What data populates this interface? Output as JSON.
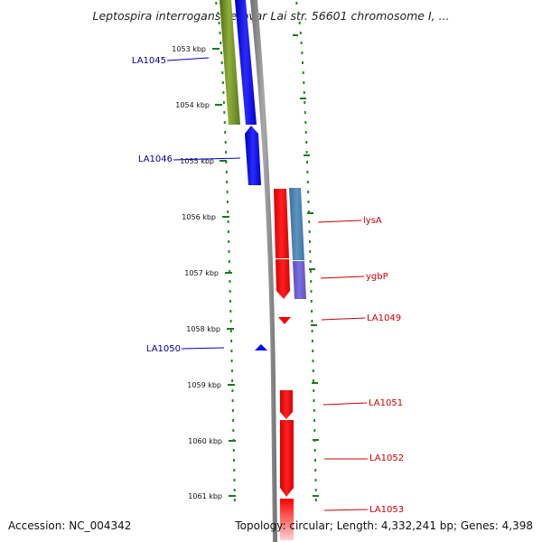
{
  "header": {
    "title": "Leptospira interrogans serovar Lai str. 56601 chromosome I, ..."
  },
  "footer": {
    "accession": "Accession: NC_004342",
    "topology": "Topology: circular; Length: 4,332,241 bp; Genes: 4,398"
  },
  "map": {
    "colors": {
      "backbone": "#808080",
      "forward_cds": "#ff0000",
      "reverse_cds": "#0000ff",
      "reverse_feature": "#6b8e23",
      "forward_feature_top": "#4682b4",
      "forward_feature_bottom": "#6a5acd",
      "dotted_track": "#228b22",
      "label_forward": "#cc0000",
      "label_reverse": "#00008b"
    },
    "tick_labels": [
      "1053 kbp",
      "1054 kbp",
      "1055 kbp",
      "1056 kbp",
      "1057 kbp",
      "1058 kbp",
      "1059 kbp",
      "1060 kbp",
      "1061 kbp"
    ],
    "gene_labels": {
      "reverse": [
        "LA1045",
        "LA1046",
        "LA1050"
      ],
      "forward": [
        "lysA",
        "ygbP",
        "LA1049",
        "LA1051",
        "LA1052",
        "LA1053"
      ]
    }
  }
}
